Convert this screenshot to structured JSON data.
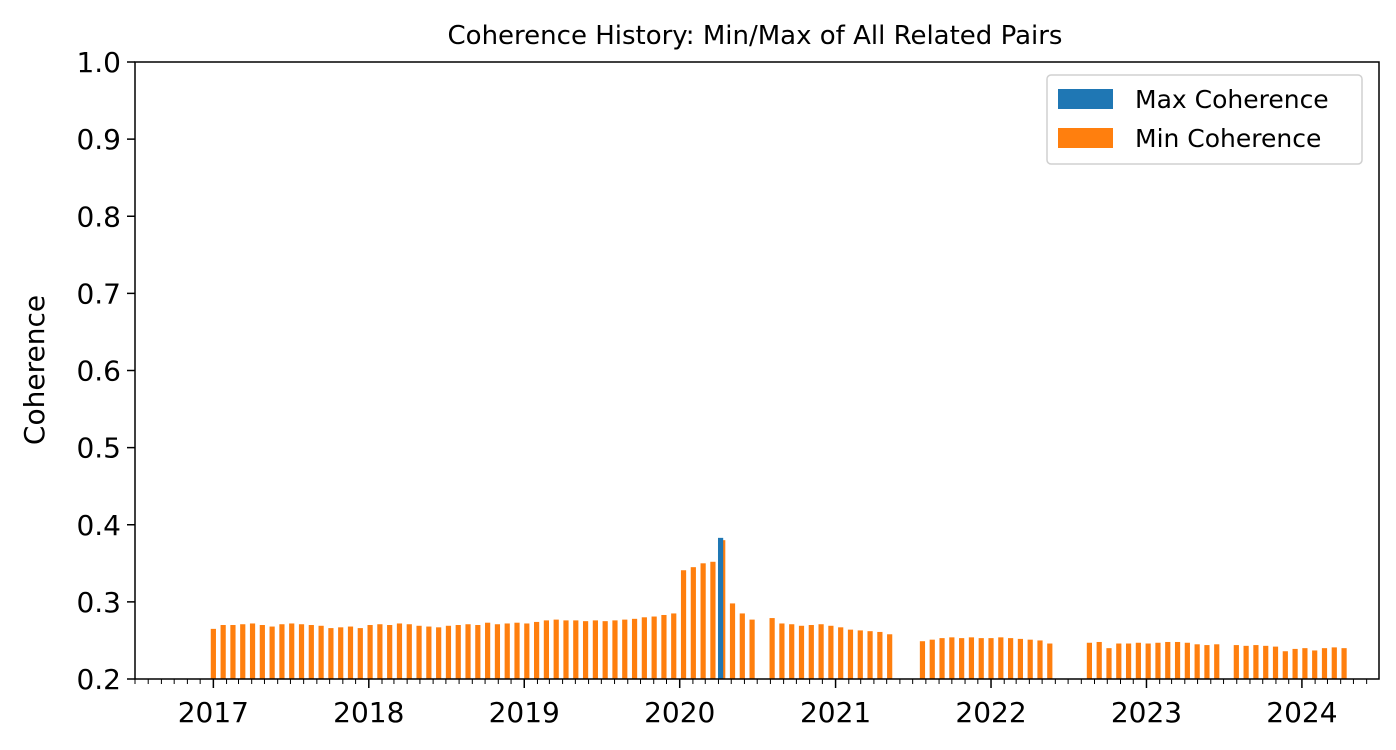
{
  "chart_data": {
    "type": "bar",
    "title": "Coherence History: Min/Max of All Related Pairs",
    "xlabel": "",
    "ylabel": "Coherence",
    "ylim": [
      0.2,
      1.0
    ],
    "xlim": [
      "2016-07-01",
      "2024-06-30"
    ],
    "y_ticks": [
      "0.2",
      "0.3",
      "0.4",
      "0.5",
      "0.6",
      "0.7",
      "0.8",
      "0.9",
      "1.0"
    ],
    "x_ticks": [
      "2017",
      "2018",
      "2019",
      "2020",
      "2021",
      "2022",
      "2023",
      "2024"
    ],
    "grid": false,
    "legend_position": "top-right",
    "colors": {
      "max": "#1f77b4",
      "min": "#ff7f0e"
    },
    "series": [
      {
        "name": "Max Coherence",
        "x": [
          "2020-04-06"
        ],
        "values": [
          0.383
        ]
      },
      {
        "name": "Min Coherence",
        "x": [
          "2017-01-01",
          "2017-01-24",
          "2017-02-16",
          "2017-03-11",
          "2017-04-03",
          "2017-04-26",
          "2017-05-19",
          "2017-06-11",
          "2017-07-04",
          "2017-07-27",
          "2017-08-19",
          "2017-09-11",
          "2017-10-04",
          "2017-10-27",
          "2017-11-19",
          "2017-12-12",
          "2018-01-04",
          "2018-01-27",
          "2018-02-19",
          "2018-03-14",
          "2018-04-06",
          "2018-04-29",
          "2018-05-22",
          "2018-06-14",
          "2018-07-07",
          "2018-07-30",
          "2018-08-22",
          "2018-09-14",
          "2018-10-07",
          "2018-10-30",
          "2018-11-22",
          "2018-12-15",
          "2019-01-07",
          "2019-01-30",
          "2019-02-22",
          "2019-03-17",
          "2019-04-09",
          "2019-05-02",
          "2019-05-25",
          "2019-06-17",
          "2019-07-10",
          "2019-08-02",
          "2019-08-25",
          "2019-09-17",
          "2019-10-10",
          "2019-11-02",
          "2019-11-25",
          "2019-12-18",
          "2020-01-10",
          "2020-02-02",
          "2020-02-25",
          "2020-03-19",
          "2020-04-11",
          "2020-05-04",
          "2020-05-27",
          "2020-06-19",
          "2020-08-05",
          "2020-08-28",
          "2020-09-20",
          "2020-10-13",
          "2020-11-05",
          "2020-11-28",
          "2020-12-21",
          "2021-01-13",
          "2021-02-05",
          "2021-02-28",
          "2021-03-23",
          "2021-04-15",
          "2021-05-08",
          "2021-07-24",
          "2021-08-16",
          "2021-09-08",
          "2021-10-01",
          "2021-10-24",
          "2021-11-16",
          "2021-12-09",
          "2022-01-01",
          "2022-01-24",
          "2022-02-16",
          "2022-03-11",
          "2022-04-03",
          "2022-04-26",
          "2022-05-19",
          "2022-08-20",
          "2022-09-12",
          "2022-10-05",
          "2022-10-28",
          "2022-11-20",
          "2022-12-13",
          "2023-01-05",
          "2023-01-28",
          "2023-02-20",
          "2023-03-15",
          "2023-04-07",
          "2023-04-30",
          "2023-05-23",
          "2023-06-15",
          "2023-07-31",
          "2023-08-23",
          "2023-09-15",
          "2023-10-08",
          "2023-10-31",
          "2023-11-23",
          "2023-12-16",
          "2024-01-08",
          "2024-01-31",
          "2024-02-23",
          "2024-03-17",
          "2024-04-09"
        ],
        "values": [
          0.265,
          0.27,
          0.27,
          0.271,
          0.272,
          0.27,
          0.268,
          0.271,
          0.272,
          0.271,
          0.27,
          0.269,
          0.266,
          0.267,
          0.268,
          0.266,
          0.27,
          0.271,
          0.27,
          0.272,
          0.271,
          0.269,
          0.268,
          0.267,
          0.269,
          0.27,
          0.271,
          0.27,
          0.273,
          0.271,
          0.272,
          0.273,
          0.272,
          0.274,
          0.276,
          0.277,
          0.276,
          0.276,
          0.275,
          0.276,
          0.275,
          0.276,
          0.277,
          0.278,
          0.28,
          0.281,
          0.283,
          0.285,
          0.341,
          0.345,
          0.35,
          0.352,
          0.38,
          0.298,
          0.285,
          0.277,
          0.279,
          0.272,
          0.271,
          0.269,
          0.27,
          0.271,
          0.269,
          0.267,
          0.264,
          0.263,
          0.262,
          0.261,
          0.258,
          0.249,
          0.251,
          0.253,
          0.254,
          0.253,
          0.254,
          0.253,
          0.253,
          0.254,
          0.253,
          0.252,
          0.251,
          0.25,
          0.246,
          0.247,
          0.248,
          0.24,
          0.246,
          0.246,
          0.247,
          0.246,
          0.247,
          0.248,
          0.248,
          0.247,
          0.245,
          0.244,
          0.245,
          0.244,
          0.243,
          0.244,
          0.243,
          0.242,
          0.236,
          0.239,
          0.24,
          0.237,
          0.24,
          0.241,
          0.24
        ]
      }
    ]
  }
}
